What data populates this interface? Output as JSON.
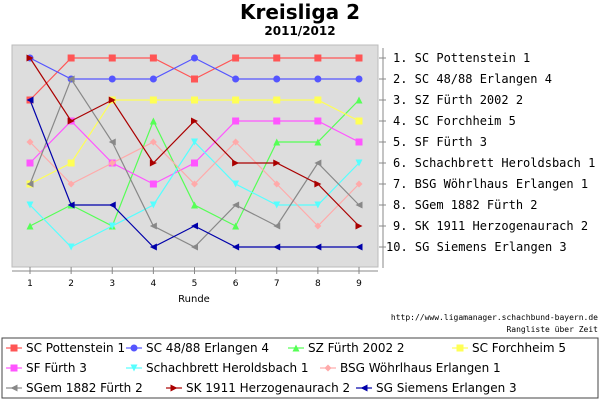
{
  "chart_data": {
    "type": "line",
    "title": "Kreisliga 2",
    "subtitle": "2011/2012",
    "xlabel": "Runde",
    "x": [
      1,
      2,
      3,
      4,
      5,
      6,
      7,
      8,
      9
    ],
    "ylim": [
      1,
      10
    ],
    "y_inverted": true,
    "grid": false,
    "legend_position": "bottom",
    "rank_labels": [
      "1. SC Pottenstein 1",
      "2. SC 48/88 Erlangen 4",
      "3. SZ Fürth 2002 2",
      "4. SC Forchheim 5",
      "5. SF Fürth 3",
      "6. Schachbrett Heroldsbach 1",
      "7. BSG Wöhrlhaus Erlangen 1",
      "8. SGem 1882 Fürth 2",
      "9. SK 1911 Herzogenaurach 2",
      "10. SG Siemens Erlangen 3"
    ],
    "source_url": "http://www.ligamanager.schachbund-bayern.de",
    "caption": "Rangliste über Zeit",
    "series": [
      {
        "name": "SC Pottenstein 1",
        "color": "#ff5555",
        "marker": "square",
        "values": [
          3,
          1,
          1,
          1,
          2,
          1,
          1,
          1,
          1
        ]
      },
      {
        "name": "SC 48/88 Erlangen 4",
        "color": "#5555ff",
        "marker": "circle",
        "values": [
          1,
          2,
          2,
          2,
          1,
          2,
          2,
          2,
          2
        ]
      },
      {
        "name": "SZ Fürth 2002 2",
        "color": "#55ff55",
        "marker": "triangle-up",
        "values": [
          9,
          8,
          9,
          4,
          8,
          9,
          5,
          5,
          3
        ]
      },
      {
        "name": "SC Forchheim 5",
        "color": "#ffff55",
        "marker": "square",
        "values": [
          7,
          6,
          3,
          3,
          3,
          3,
          3,
          3,
          4
        ]
      },
      {
        "name": "SF Fürth 3",
        "color": "#ff55ff",
        "marker": "square",
        "values": [
          6,
          4,
          6,
          7,
          6,
          4,
          4,
          4,
          5
        ]
      },
      {
        "name": "Schachbrett Heroldsbach 1",
        "color": "#55ffff",
        "marker": "triangle-down",
        "values": [
          8,
          10,
          9,
          8,
          5,
          7,
          8,
          8,
          6
        ]
      },
      {
        "name": "BSG Wöhrlhaus Erlangen 1",
        "color": "#ffaaaa",
        "marker": "diamond",
        "values": [
          5,
          7,
          6,
          5,
          7,
          5,
          7,
          9,
          7
        ]
      },
      {
        "name": "SGem 1882 Fürth 2",
        "color": "#888888",
        "marker": "triangle-left",
        "values": [
          7,
          2,
          5,
          9,
          10,
          8,
          9,
          6,
          8
        ]
      },
      {
        "name": "SK 1911 Herzogenaurach 2",
        "color": "#aa0000",
        "marker": "triangle-right",
        "values": [
          1,
          4,
          3,
          6,
          4,
          6,
          6,
          7,
          9
        ]
      },
      {
        "name": "SG Siemens Erlangen 3",
        "color": "#0000aa",
        "marker": "triangle-left",
        "values": [
          3,
          8,
          8,
          10,
          9,
          10,
          10,
          10,
          10
        ]
      }
    ]
  }
}
